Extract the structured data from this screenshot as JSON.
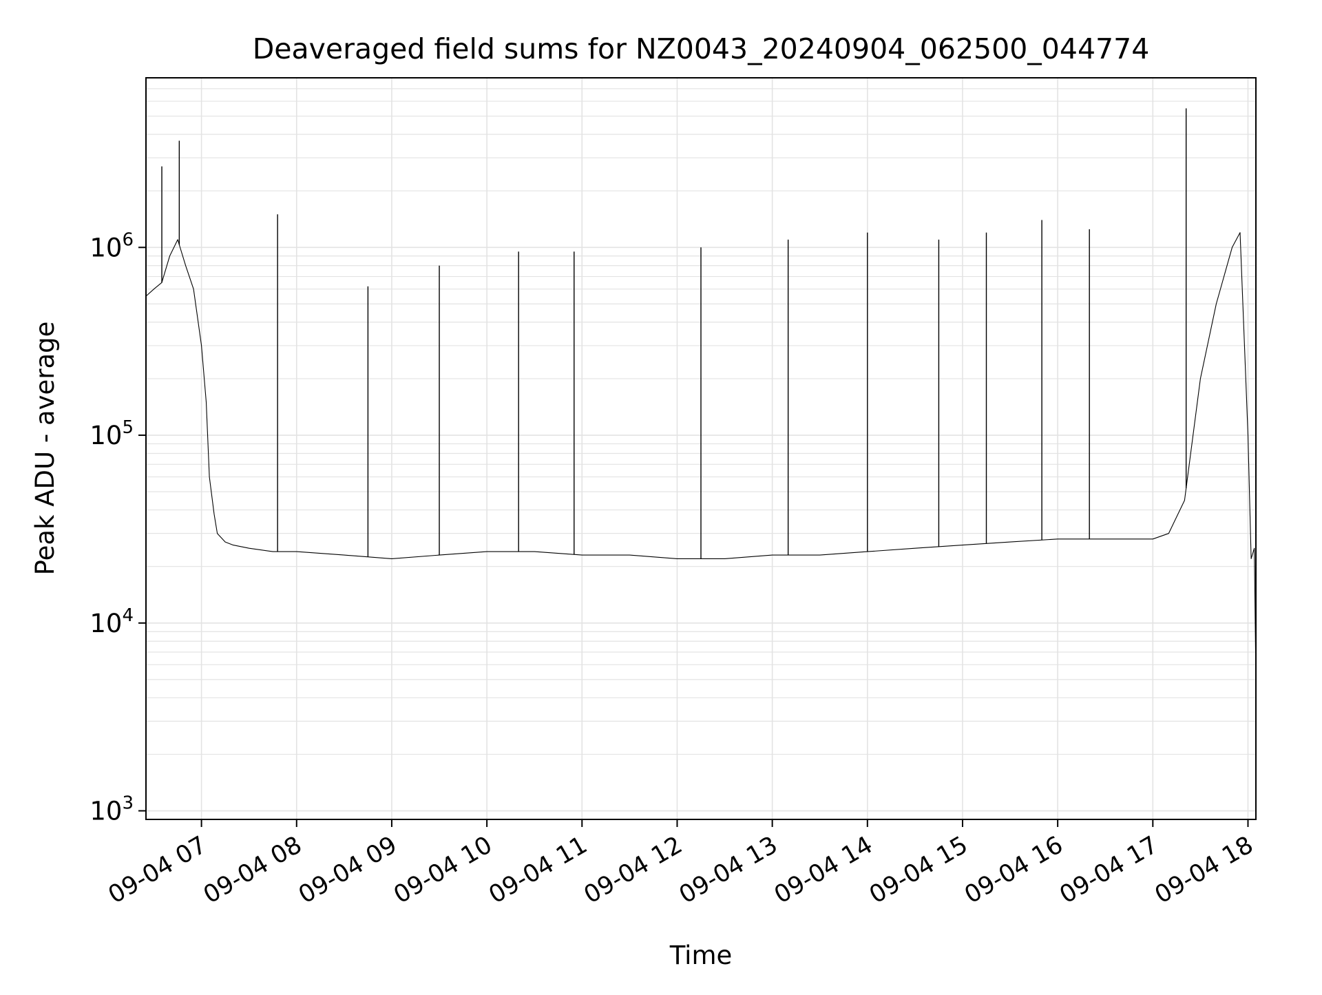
{
  "chart_data": {
    "type": "line",
    "title": "Deaveraged field sums for NZ0043_20240904_062500_044774",
    "xlabel": "Time",
    "ylabel": "Peak ADU - average",
    "yscale": "log",
    "ylim": [
      900,
      8000000
    ],
    "xlim": [
      "2024-09-04 06:25",
      "2024-09-04 18:05"
    ],
    "grid": true,
    "line_color": "#000000",
    "x_ticks": [
      {
        "time": "2024-09-04 07:00",
        "label": "09-04 07"
      },
      {
        "time": "2024-09-04 08:00",
        "label": "09-04 08"
      },
      {
        "time": "2024-09-04 09:00",
        "label": "09-04 09"
      },
      {
        "time": "2024-09-04 10:00",
        "label": "09-04 10"
      },
      {
        "time": "2024-09-04 11:00",
        "label": "09-04 11"
      },
      {
        "time": "2024-09-04 12:00",
        "label": "09-04 12"
      },
      {
        "time": "2024-09-04 13:00",
        "label": "09-04 13"
      },
      {
        "time": "2024-09-04 14:00",
        "label": "09-04 14"
      },
      {
        "time": "2024-09-04 15:00",
        "label": "09-04 15"
      },
      {
        "time": "2024-09-04 16:00",
        "label": "09-04 16"
      },
      {
        "time": "2024-09-04 17:00",
        "label": "09-04 17"
      },
      {
        "time": "2024-09-04 18:00",
        "label": "09-04 18"
      }
    ],
    "y_ticks": [
      {
        "value": 1000,
        "base": "10",
        "exp": "3"
      },
      {
        "value": 10000,
        "base": "10",
        "exp": "4"
      },
      {
        "value": 100000,
        "base": "10",
        "exp": "5"
      },
      {
        "value": 1000000,
        "base": "10",
        "exp": "6"
      }
    ],
    "series": [
      {
        "x": [
          "2024-09-04 06:25",
          "2024-09-04 06:30",
          "2024-09-04 06:35",
          "2024-09-04 06:40",
          "2024-09-04 06:45",
          "2024-09-04 06:50",
          "2024-09-04 06:55",
          "2024-09-04 07:00",
          "2024-09-04 07:03",
          "2024-09-04 07:05",
          "2024-09-04 07:08",
          "2024-09-04 07:10",
          "2024-09-04 07:15",
          "2024-09-04 07:20",
          "2024-09-04 07:30",
          "2024-09-04 07:45",
          "2024-09-04 08:00",
          "2024-09-04 08:30",
          "2024-09-04 09:00",
          "2024-09-04 09:30",
          "2024-09-04 10:00",
          "2024-09-04 10:30",
          "2024-09-04 11:00",
          "2024-09-04 11:30",
          "2024-09-04 12:00",
          "2024-09-04 12:30",
          "2024-09-04 13:00",
          "2024-09-04 13:30",
          "2024-09-04 14:00",
          "2024-09-04 14:30",
          "2024-09-04 15:00",
          "2024-09-04 15:30",
          "2024-09-04 16:00",
          "2024-09-04 16:30",
          "2024-09-04 17:00",
          "2024-09-04 17:10",
          "2024-09-04 17:20",
          "2024-09-04 17:30",
          "2024-09-04 17:40",
          "2024-09-04 17:50",
          "2024-09-04 17:55",
          "2024-09-04 18:00",
          "2024-09-04 18:02",
          "2024-09-04 18:04",
          "2024-09-04 18:05"
        ],
        "y": [
          550000,
          600000,
          650000,
          900000,
          1100000,
          800000,
          600000,
          300000,
          150000,
          60000,
          38000,
          30000,
          27000,
          26000,
          25000,
          24000,
          24000,
          23000,
          22000,
          23000,
          24000,
          24000,
          23000,
          23000,
          22000,
          22000,
          23000,
          23000,
          24000,
          25000,
          26000,
          27000,
          28000,
          28000,
          28000,
          30000,
          45000,
          200000,
          500000,
          1000000,
          1200000,
          100000,
          22000,
          25000,
          5000
        ]
      }
    ],
    "spikes": [
      {
        "time": "2024-09-04 06:35",
        "value": 2700000
      },
      {
        "time": "2024-09-04 06:46",
        "value": 3700000
      },
      {
        "time": "2024-09-04 07:48",
        "value": 1500000
      },
      {
        "time": "2024-09-04 08:45",
        "value": 620000
      },
      {
        "time": "2024-09-04 09:30",
        "value": 800000
      },
      {
        "time": "2024-09-04 10:20",
        "value": 950000
      },
      {
        "time": "2024-09-04 10:55",
        "value": 950000
      },
      {
        "time": "2024-09-04 12:15",
        "value": 1000000
      },
      {
        "time": "2024-09-04 13:10",
        "value": 1100000
      },
      {
        "time": "2024-09-04 14:00",
        "value": 1200000
      },
      {
        "time": "2024-09-04 14:45",
        "value": 1100000
      },
      {
        "time": "2024-09-04 15:15",
        "value": 1200000
      },
      {
        "time": "2024-09-04 15:50",
        "value": 1400000
      },
      {
        "time": "2024-09-04 16:20",
        "value": 1250000
      },
      {
        "time": "2024-09-04 17:21",
        "value": 5500000
      }
    ]
  }
}
